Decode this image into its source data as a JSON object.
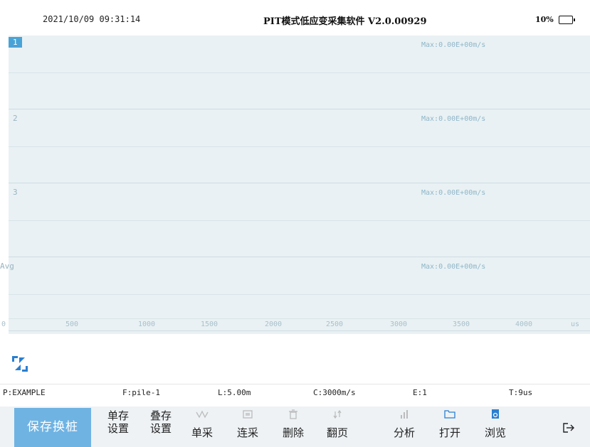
{
  "status_bar": {
    "datetime": "2021/10/09 09:31:14",
    "title": "PIT模式低应变采集软件 V2.0.00929",
    "battery": "10%"
  },
  "channels": [
    {
      "label": "1",
      "max": "Max:0.00E+00m/s"
    },
    {
      "label": "2",
      "max": "Max:0.00E+00m/s"
    },
    {
      "label": "3",
      "max": "Max:0.00E+00m/s"
    },
    {
      "label": "Avg",
      "max": "Max:0.00E+00m/s"
    }
  ],
  "x_axis": {
    "ticks": [
      "0",
      "500",
      "1000",
      "1500",
      "2000",
      "2500",
      "3000",
      "3500",
      "4000",
      "us"
    ]
  },
  "info": {
    "p": "P:EXAMPLE",
    "f": "F:pile-1",
    "l": "L:5.00m",
    "c": "C:3000m/s",
    "e": "E:1",
    "t": "T:9us"
  },
  "toolbar": {
    "save_change": "保存换桩",
    "single_save_settings": [
      "单存",
      "设置"
    ],
    "stack_save_settings": [
      "叠存",
      "设置"
    ],
    "single_acquire": "单采",
    "continuous_acquire": "连采",
    "delete": "删除",
    "page_flip": "翻页",
    "analyze": "分析",
    "open": "打开",
    "browse": "浏览"
  },
  "colors": {
    "accent": "#6fb3e3",
    "plot_bg": "#e9f1f4",
    "icon_blue": "#2a7fd0"
  }
}
